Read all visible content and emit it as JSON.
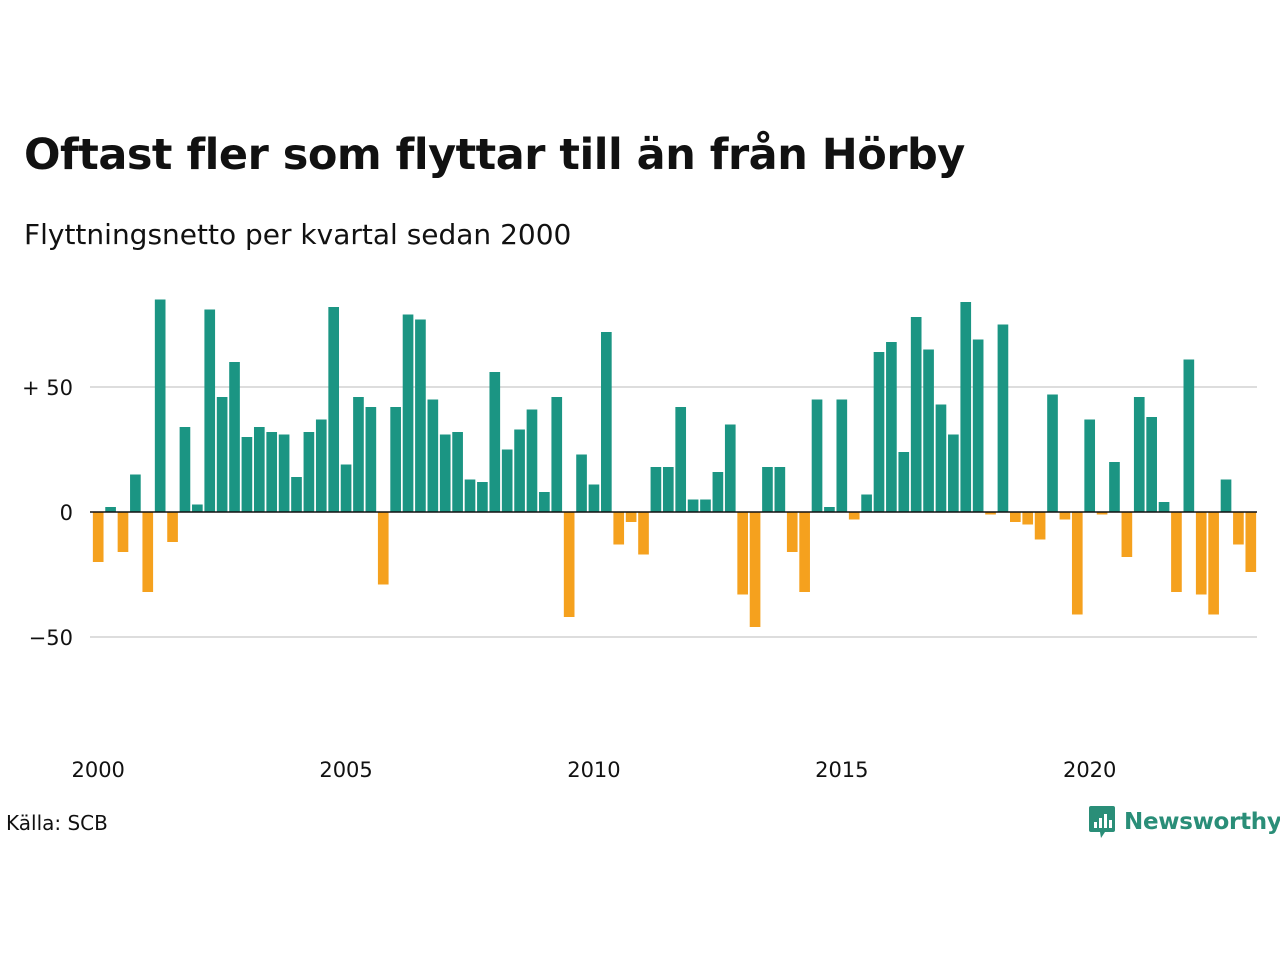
{
  "header": {
    "title": "Oftast fler som flyttar till än från Hörby",
    "subtitle": "Flyttningsnetto per kvartal sedan 2000"
  },
  "footer": {
    "source": "Källa: SCB",
    "logo_text": "Newsworthy",
    "logo_icon": "newsworthy-logo-icon"
  },
  "colors": {
    "positive": "#1b9583",
    "negative": "#f5a11e",
    "grid": "#dddddd"
  },
  "chart_data": {
    "type": "bar",
    "x_start": "2000 Q1",
    "x_tick_labels": [
      "2000",
      "2005",
      "2010",
      "2015",
      "2020"
    ],
    "y_tick_labels": [
      "+ 50",
      "0",
      "−50"
    ],
    "y_ticks": [
      50,
      0,
      -50
    ],
    "ylim": [
      -90,
      90
    ],
    "grid": true,
    "legend": "none",
    "values": [
      -20,
      2,
      -16,
      15,
      -32,
      85,
      -12,
      34,
      3,
      81,
      46,
      60,
      30,
      34,
      32,
      31,
      14,
      32,
      37,
      82,
      19,
      46,
      42,
      -29,
      42,
      79,
      77,
      45,
      31,
      32,
      13,
      12,
      56,
      25,
      33,
      41,
      8,
      46,
      -42,
      23,
      11,
      72,
      -13,
      -4,
      -17,
      18,
      18,
      42,
      5,
      5,
      16,
      35,
      -33,
      -46,
      18,
      18,
      -16,
      -32,
      45,
      2,
      45,
      -3,
      7,
      64,
      68,
      24,
      78,
      65,
      43,
      31,
      84,
      69,
      -1,
      75,
      -4,
      -5,
      -11,
      47,
      -3,
      -41,
      37,
      -1,
      20,
      -18,
      46,
      38,
      4,
      -32,
      61,
      -33,
      -41,
      13,
      -13,
      -24
    ]
  }
}
